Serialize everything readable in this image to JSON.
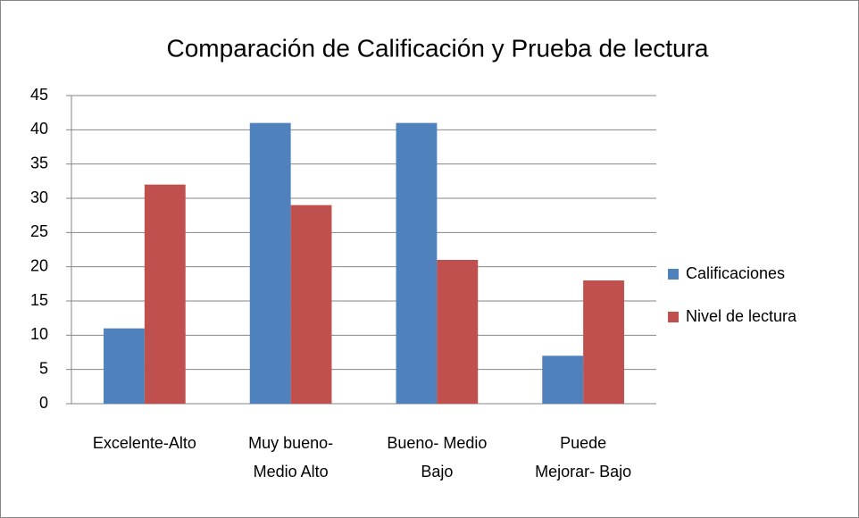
{
  "chart_data": {
    "type": "bar",
    "title": "Comparación de Calificación  y Prueba de lectura",
    "categories": [
      "Excelente-Alto",
      "Muy bueno-\nMedio Alto",
      "Bueno- Medio\nBajo",
      "Puede\nMejorar- Bajo"
    ],
    "series": [
      {
        "name": "Calificaciones",
        "color": "#4f81bd",
        "values": [
          11,
          41,
          41,
          7
        ]
      },
      {
        "name": "Nivel de lectura",
        "color": "#c0504d",
        "values": [
          32,
          29,
          21,
          18
        ]
      }
    ],
    "ylim": [
      0,
      45
    ],
    "yticks": [
      0,
      5,
      10,
      15,
      20,
      25,
      30,
      35,
      40,
      45
    ],
    "grid": true,
    "legend": "right"
  }
}
